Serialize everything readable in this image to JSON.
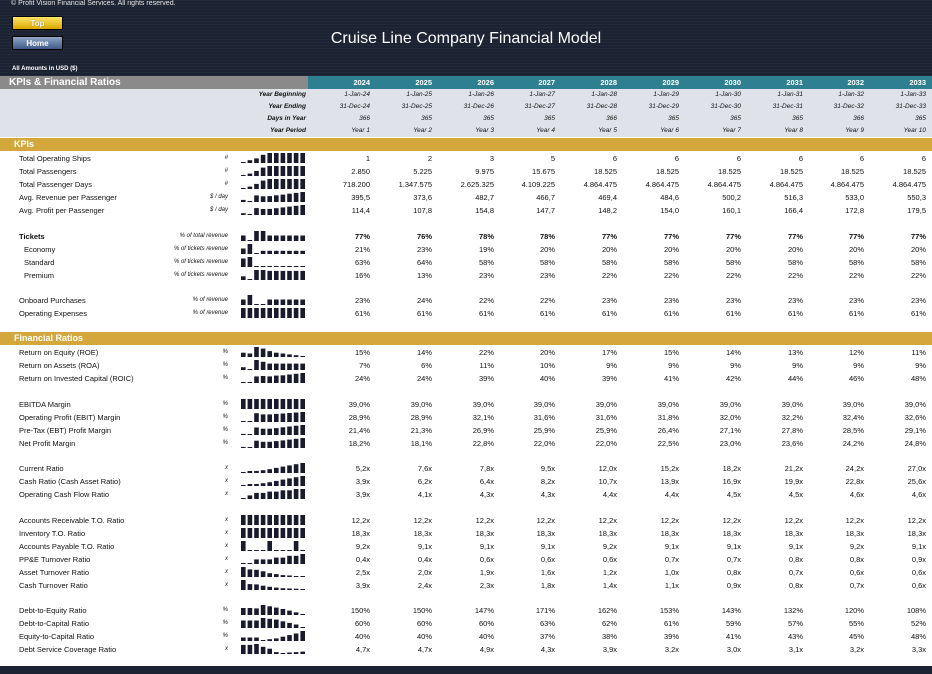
{
  "header": {
    "copyright": "© Profit Vision Financial Services. All rights reserved.",
    "top_button": "Top",
    "home_button": "Home",
    "title": "Cruise Line Company Financial Model",
    "units": "All Amounts in  USD ($)"
  },
  "table": {
    "title": "KPIs & Financial Ratios",
    "years": [
      "2024",
      "2025",
      "2026",
      "2027",
      "2028",
      "2029",
      "2030",
      "2031",
      "2032",
      "2033"
    ],
    "meta_rows": [
      {
        "label": "Year Beginning",
        "values": [
          "1-Jan-24",
          "1-Jan-25",
          "1-Jan-26",
          "1-Jan-27",
          "1-Jan-28",
          "1-Jan-29",
          "1-Jan-30",
          "1-Jan-31",
          "1-Jan-32",
          "1-Jan-33"
        ]
      },
      {
        "label": "Year Ending",
        "values": [
          "31-Dec-24",
          "31-Dec-25",
          "31-Dec-26",
          "31-Dec-27",
          "31-Dec-28",
          "31-Dec-29",
          "31-Dec-30",
          "31-Dec-31",
          "31-Dec-32",
          "31-Dec-33"
        ]
      },
      {
        "label": "Days in Year",
        "values": [
          "366",
          "365",
          "365",
          "365",
          "366",
          "365",
          "365",
          "365",
          "366",
          "365"
        ]
      },
      {
        "label": "Year Period",
        "values": [
          "Year 1",
          "Year 2",
          "Year 3",
          "Year 4",
          "Year 5",
          "Year 6",
          "Year 7",
          "Year 8",
          "Year 9",
          "Year 10"
        ]
      }
    ]
  },
  "sections": {
    "kpis": "KPIs",
    "ratios": "Financial Ratios"
  },
  "kpi_rows": [
    {
      "label": "Total Operating Ships",
      "unit": "#",
      "values": [
        "1",
        "2",
        "3",
        "5",
        "6",
        "6",
        "6",
        "6",
        "6",
        "6"
      ],
      "spark": [
        1,
        2,
        3,
        5,
        6,
        6,
        6,
        6,
        6,
        6
      ]
    },
    {
      "label": "Total Passengers",
      "unit": "#",
      "values": [
        "2.850",
        "5.225",
        "9.975",
        "15.675",
        "18.525",
        "18.525",
        "18.525",
        "18.525",
        "18.525",
        "18.525"
      ],
      "spark": [
        2850,
        5225,
        9975,
        15675,
        18525,
        18525,
        18525,
        18525,
        18525,
        18525
      ]
    },
    {
      "label": "Total Passenger Days",
      "unit": "#",
      "values": [
        "718.200",
        "1.347.575",
        "2.625.325",
        "4.109.225",
        "4.864.475",
        "4.864.475",
        "4.864.475",
        "4.864.475",
        "4.864.475",
        "4.864.475"
      ],
      "spark": [
        718200,
        1347575,
        2625325,
        4109225,
        4864475,
        4864475,
        4864475,
        4864475,
        4864475,
        4864475
      ]
    },
    {
      "label": "Avg. Revenue per Passenger",
      "unit": "$ / day",
      "values": [
        "395,5",
        "373,6",
        "482,7",
        "466,7",
        "469,4",
        "484,6",
        "500,2",
        "516,3",
        "533,0",
        "550,3"
      ],
      "spark": [
        395.5,
        373.6,
        482.7,
        466.7,
        469.4,
        484.6,
        500.2,
        516.3,
        533.0,
        550.3
      ]
    },
    {
      "label": "Avg. Profit per Passenger",
      "unit": "$ / day",
      "values": [
        "114,4",
        "107,8",
        "154,8",
        "147,7",
        "148,2",
        "154,0",
        "160,1",
        "166,4",
        "172,8",
        "179,5"
      ],
      "spark": [
        114.4,
        107.8,
        154.8,
        147.7,
        148.2,
        154.0,
        160.1,
        166.4,
        172.8,
        179.5
      ]
    },
    {
      "label": "Tickets",
      "unit": "% of total revenue",
      "bold": true,
      "values": [
        "77%",
        "76%",
        "78%",
        "78%",
        "77%",
        "77%",
        "77%",
        "77%",
        "77%",
        "77%"
      ],
      "spark": [
        77,
        76,
        78,
        78,
        77,
        77,
        77,
        77,
        77,
        77
      ]
    },
    {
      "label": "Economy",
      "unit": "% of tickets revenue",
      "indent": true,
      "values": [
        "21%",
        "23%",
        "19%",
        "20%",
        "20%",
        "20%",
        "20%",
        "20%",
        "20%",
        "20%"
      ],
      "spark": [
        21,
        23,
        19,
        20,
        20,
        20,
        20,
        20,
        20,
        20
      ]
    },
    {
      "label": "Standard",
      "unit": "% of tickets revenue",
      "indent": true,
      "values": [
        "63%",
        "64%",
        "58%",
        "58%",
        "58%",
        "58%",
        "58%",
        "58%",
        "58%",
        "58%"
      ],
      "spark": [
        63,
        64,
        58,
        58,
        58,
        58,
        58,
        58,
        58,
        58
      ]
    },
    {
      "label": "Premium",
      "unit": "% of tickets revenue",
      "indent": true,
      "values": [
        "16%",
        "13%",
        "23%",
        "23%",
        "22%",
        "22%",
        "22%",
        "22%",
        "22%",
        "22%"
      ],
      "spark": [
        16,
        13,
        23,
        23,
        22,
        22,
        22,
        22,
        22,
        22
      ]
    },
    {
      "label": "Onboard Purchases",
      "unit": "% of revenue",
      "values": [
        "23%",
        "24%",
        "22%",
        "22%",
        "23%",
        "23%",
        "23%",
        "23%",
        "23%",
        "23%"
      ],
      "spark": [
        23,
        24,
        22,
        22,
        23,
        23,
        23,
        23,
        23,
        23
      ]
    },
    {
      "label": "Operating Expenses",
      "unit": "% of revenue",
      "values": [
        "61%",
        "61%",
        "61%",
        "61%",
        "61%",
        "61%",
        "61%",
        "61%",
        "61%",
        "61%"
      ],
      "spark": [
        61,
        61,
        61,
        61,
        61,
        61,
        61,
        61,
        61,
        61
      ]
    }
  ],
  "ratio_rows": [
    {
      "label": "Return on Equity (ROE)",
      "unit": "%",
      "values": [
        "15%",
        "14%",
        "22%",
        "20%",
        "17%",
        "15%",
        "14%",
        "13%",
        "12%",
        "11%"
      ],
      "spark": [
        15,
        14,
        22,
        20,
        17,
        15,
        14,
        13,
        12,
        11
      ]
    },
    {
      "label": "Return on Assets (ROA)",
      "unit": "%",
      "values": [
        "7%",
        "6%",
        "11%",
        "10%",
        "9%",
        "9%",
        "9%",
        "9%",
        "9%",
        "9%"
      ],
      "spark": [
        7,
        6,
        11,
        10,
        9,
        9,
        9,
        9,
        9,
        9
      ]
    },
    {
      "label": "Return on Invested Capital (ROIC)",
      "unit": "%",
      "values": [
        "24%",
        "24%",
        "39%",
        "40%",
        "39%",
        "41%",
        "42%",
        "44%",
        "46%",
        "48%"
      ],
      "spark": [
        24,
        24,
        39,
        40,
        39,
        41,
        42,
        44,
        46,
        48
      ]
    },
    {
      "label": "EBITDA Margin",
      "unit": "%",
      "values": [
        "39,0%",
        "39,0%",
        "39,0%",
        "39,0%",
        "39,0%",
        "39,0%",
        "39,0%",
        "39,0%",
        "39,0%",
        "39,0%"
      ],
      "spark": [
        39.0,
        39.0,
        39.0,
        39.0,
        39.0,
        39.0,
        39.0,
        39.0,
        39.0,
        39.0
      ]
    },
    {
      "label": "Operating Profit (EBIT) Margin",
      "unit": "%",
      "values": [
        "28,9%",
        "28,9%",
        "32,1%",
        "31,6%",
        "31,6%",
        "31,8%",
        "32,0%",
        "32,2%",
        "32,4%",
        "32,6%"
      ],
      "spark": [
        28.9,
        28.9,
        32.1,
        31.6,
        31.6,
        31.8,
        32.0,
        32.2,
        32.4,
        32.6
      ]
    },
    {
      "label": "Pre-Tax (EBT) Profit Margin",
      "unit": "%",
      "values": [
        "21,4%",
        "21,3%",
        "26,9%",
        "25,9%",
        "25,9%",
        "26,4%",
        "27,1%",
        "27,8%",
        "28,5%",
        "29,1%"
      ],
      "spark": [
        21.4,
        21.3,
        26.9,
        25.9,
        25.9,
        26.4,
        27.1,
        27.8,
        28.5,
        29.1
      ]
    },
    {
      "label": "Net Profit Margin",
      "unit": "%",
      "values": [
        "18,2%",
        "18,1%",
        "22,8%",
        "22,0%",
        "22,0%",
        "22,5%",
        "23,0%",
        "23,6%",
        "24,2%",
        "24,8%"
      ],
      "spark": [
        18.2,
        18.1,
        22.8,
        22.0,
        22.0,
        22.5,
        23.0,
        23.6,
        24.2,
        24.8
      ]
    },
    {
      "label": "Current Ratio",
      "unit": "x",
      "values": [
        "5,2x",
        "7,6x",
        "7,8x",
        "9,5x",
        "12,0x",
        "15,2x",
        "18,2x",
        "21,2x",
        "24,2x",
        "27,0x"
      ],
      "spark": [
        5.2,
        7.6,
        7.8,
        9.5,
        12.0,
        15.2,
        18.2,
        21.2,
        24.2,
        27.0
      ]
    },
    {
      "label": "Cash Ratio (Cash Asset Ratio)",
      "unit": "x",
      "values": [
        "3,9x",
        "6,2x",
        "6,4x",
        "8,2x",
        "10,7x",
        "13,9x",
        "16,9x",
        "19,9x",
        "22,8x",
        "25,6x"
      ],
      "spark": [
        3.9,
        6.2,
        6.4,
        8.2,
        10.7,
        13.9,
        16.9,
        19.9,
        22.8,
        25.6
      ]
    },
    {
      "label": "Operating Cash Flow Ratio",
      "unit": "x",
      "values": [
        "3,9x",
        "4,1x",
        "4,3x",
        "4,3x",
        "4,4x",
        "4,4x",
        "4,5x",
        "4,5x",
        "4,6x",
        "4,6x"
      ],
      "spark": [
        3.9,
        4.1,
        4.3,
        4.3,
        4.4,
        4.4,
        4.5,
        4.5,
        4.6,
        4.6
      ]
    },
    {
      "label": "Accounts Receivable T.O. Ratio",
      "unit": "x",
      "values": [
        "12,2x",
        "12,2x",
        "12,2x",
        "12,2x",
        "12,2x",
        "12,2x",
        "12,2x",
        "12,2x",
        "12,2x",
        "12,2x"
      ],
      "spark": [
        12.2,
        12.2,
        12.2,
        12.2,
        12.2,
        12.2,
        12.2,
        12.2,
        12.2,
        12.2
      ]
    },
    {
      "label": "Inventory T.O. Ratio",
      "unit": "x",
      "values": [
        "18,3x",
        "18,3x",
        "18,3x",
        "18,3x",
        "18,3x",
        "18,3x",
        "18,3x",
        "18,3x",
        "18,3x",
        "18,3x"
      ],
      "spark": [
        18.3,
        18.3,
        18.3,
        18.3,
        18.3,
        18.3,
        18.3,
        18.3,
        18.3,
        18.3
      ]
    },
    {
      "label": "Accounts Payable T.O. Ratio",
      "unit": "x",
      "values": [
        "9,2x",
        "9,1x",
        "9,1x",
        "9,1x",
        "9,2x",
        "9,1x",
        "9,1x",
        "9,1x",
        "9,2x",
        "9,1x"
      ],
      "spark": [
        9.2,
        9.1,
        9.1,
        9.1,
        9.2,
        9.1,
        9.1,
        9.1,
        9.2,
        9.1
      ]
    },
    {
      "label": "PP&E Turnover Ratio",
      "unit": "x",
      "values": [
        "0,4x",
        "0,4x",
        "0,6x",
        "0,6x",
        "0,6x",
        "0,7x",
        "0,7x",
        "0,8x",
        "0,8x",
        "0,9x"
      ],
      "spark": [
        0.4,
        0.4,
        0.6,
        0.6,
        0.6,
        0.7,
        0.7,
        0.8,
        0.8,
        0.9
      ]
    },
    {
      "label": "Asset Turnover Ratio",
      "unit": "x",
      "values": [
        "2,5x",
        "2,0x",
        "1,9x",
        "1,6x",
        "1,2x",
        "1,0x",
        "0,8x",
        "0,7x",
        "0,6x",
        "0,6x"
      ],
      "spark": [
        2.5,
        2.0,
        1.9,
        1.6,
        1.2,
        1.0,
        0.8,
        0.7,
        0.6,
        0.6
      ]
    },
    {
      "label": "Cash Turnover Ratio",
      "unit": "x",
      "values": [
        "3,9x",
        "2,4x",
        "2,3x",
        "1,8x",
        "1,4x",
        "1,1x",
        "0,9x",
        "0,8x",
        "0,7x",
        "0,6x"
      ],
      "spark": [
        3.9,
        2.4,
        2.3,
        1.8,
        1.4,
        1.1,
        0.9,
        0.8,
        0.7,
        0.6
      ]
    },
    {
      "label": "Debt-to-Equity Ratio",
      "unit": "%",
      "values": [
        "150%",
        "150%",
        "147%",
        "171%",
        "162%",
        "153%",
        "143%",
        "132%",
        "120%",
        "108%"
      ],
      "spark": [
        150,
        150,
        147,
        171,
        162,
        153,
        143,
        132,
        120,
        108
      ]
    },
    {
      "label": "Debt-to-Capital Ratio",
      "unit": "%",
      "values": [
        "60%",
        "60%",
        "60%",
        "63%",
        "62%",
        "61%",
        "59%",
        "57%",
        "55%",
        "52%"
      ],
      "spark": [
        60,
        60,
        60,
        63,
        62,
        61,
        59,
        57,
        55,
        52
      ]
    },
    {
      "label": "Equity-to-Capital Ratio",
      "unit": "%",
      "values": [
        "40%",
        "40%",
        "40%",
        "37%",
        "38%",
        "39%",
        "41%",
        "43%",
        "45%",
        "48%"
      ],
      "spark": [
        40,
        40,
        40,
        37,
        38,
        39,
        41,
        43,
        45,
        48
      ]
    },
    {
      "label": "Debt Service Coverage Ratio",
      "unit": "x",
      "values": [
        "4,7x",
        "4,7x",
        "4,9x",
        "4,3x",
        "3,9x",
        "3,2x",
        "3,0x",
        "3,1x",
        "3,2x",
        "3,3x"
      ],
      "spark": [
        4.7,
        4.7,
        4.9,
        4.3,
        3.9,
        3.2,
        3.0,
        3.1,
        3.2,
        3.3
      ]
    }
  ],
  "colors": {
    "header_bg": "#1b2232",
    "year_bar": "#2e7f8f",
    "section_bar": "#d4a73c",
    "spark": "#1a1a2e"
  }
}
